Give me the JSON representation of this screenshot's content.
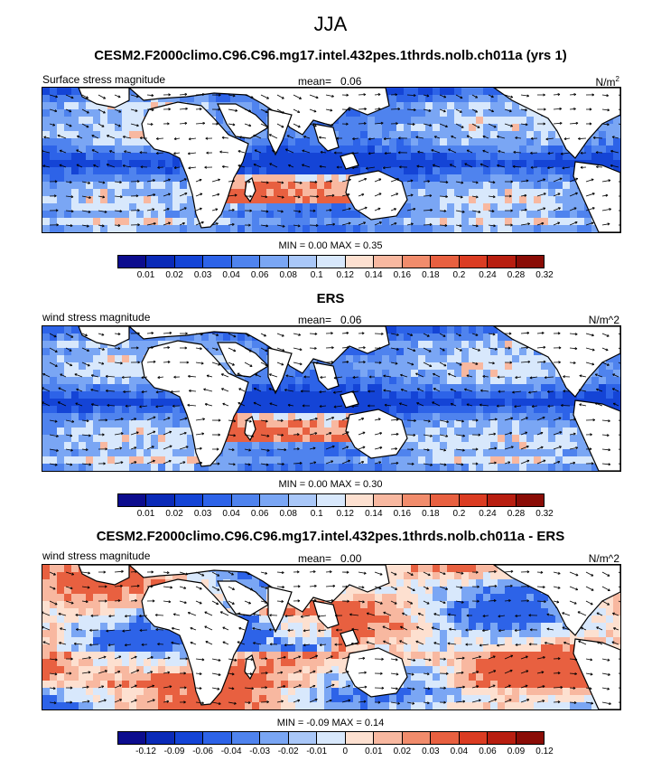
{
  "season": "JJA",
  "panels": [
    {
      "id": "p1",
      "title": "CESM2.F2000climo.C96.C96.mg17.intel.432pes.1thrds.nolb.ch011a (yrs 1)",
      "left_label": "Surface stress magnitude",
      "mean_label": "mean=",
      "mean_value": "0.06",
      "units": "N/m",
      "units_sup": "2",
      "stats": "MIN =  0.00 MAX =  0.35",
      "colorbar_ticks": [
        "0.01",
        "0.02",
        "0.03",
        "0.04",
        "0.06",
        "0.08",
        "0.1",
        "0.12",
        "0.14",
        "0.16",
        "0.18",
        "0.2",
        "0.24",
        "0.28",
        "0.32"
      ],
      "colors": [
        "#0c0c8e",
        "#0a2ab8",
        "#1444d6",
        "#2d63e8",
        "#4f83ee",
        "#7aa6f4",
        "#a9c7f8",
        "#d8e8fc",
        "#fde0d0",
        "#f8b8a0",
        "#f18c6c",
        "#e86040",
        "#db3c22",
        "#b81e10",
        "#8a0c06"
      ]
    },
    {
      "id": "p2",
      "title": "ERS",
      "left_label": "wind stress magnitude",
      "mean_label": "mean=",
      "mean_value": "0.06",
      "units": "N/m^2",
      "units_sup": "",
      "stats": "MIN =  0.00 MAX =  0.30",
      "colorbar_ticks": [
        "0.01",
        "0.02",
        "0.03",
        "0.04",
        "0.06",
        "0.08",
        "0.1",
        "0.12",
        "0.14",
        "0.16",
        "0.18",
        "0.2",
        "0.24",
        "0.28",
        "0.32"
      ],
      "colors": [
        "#0c0c8e",
        "#0a2ab8",
        "#1444d6",
        "#2d63e8",
        "#4f83ee",
        "#7aa6f4",
        "#a9c7f8",
        "#d8e8fc",
        "#fde0d0",
        "#f8b8a0",
        "#f18c6c",
        "#e86040",
        "#db3c22",
        "#b81e10",
        "#8a0c06"
      ]
    },
    {
      "id": "p3",
      "title": "CESM2.F2000climo.C96.C96.mg17.intel.432pes.1thrds.nolb.ch011a - ERS",
      "left_label": "wind stress magnitude",
      "mean_label": "mean=",
      "mean_value": "0.00",
      "units": "N/m^2",
      "units_sup": "",
      "stats": "MIN = -0.09 MAX =  0.14",
      "colorbar_ticks": [
        "-0.12",
        "-0.09",
        "-0.06",
        "-0.04",
        "-0.03",
        "-0.02",
        "-0.01",
        "0",
        "0.01",
        "0.02",
        "0.03",
        "0.04",
        "0.06",
        "0.09",
        "0.12"
      ],
      "colors": [
        "#0c0c8e",
        "#0a2ab8",
        "#1444d6",
        "#2d63e8",
        "#4f83ee",
        "#7aa6f4",
        "#a9c7f8",
        "#d8e8fc",
        "#fde0d0",
        "#f8b8a0",
        "#f18c6c",
        "#e86040",
        "#db3c22",
        "#b81e10",
        "#8a0c06"
      ]
    }
  ]
}
